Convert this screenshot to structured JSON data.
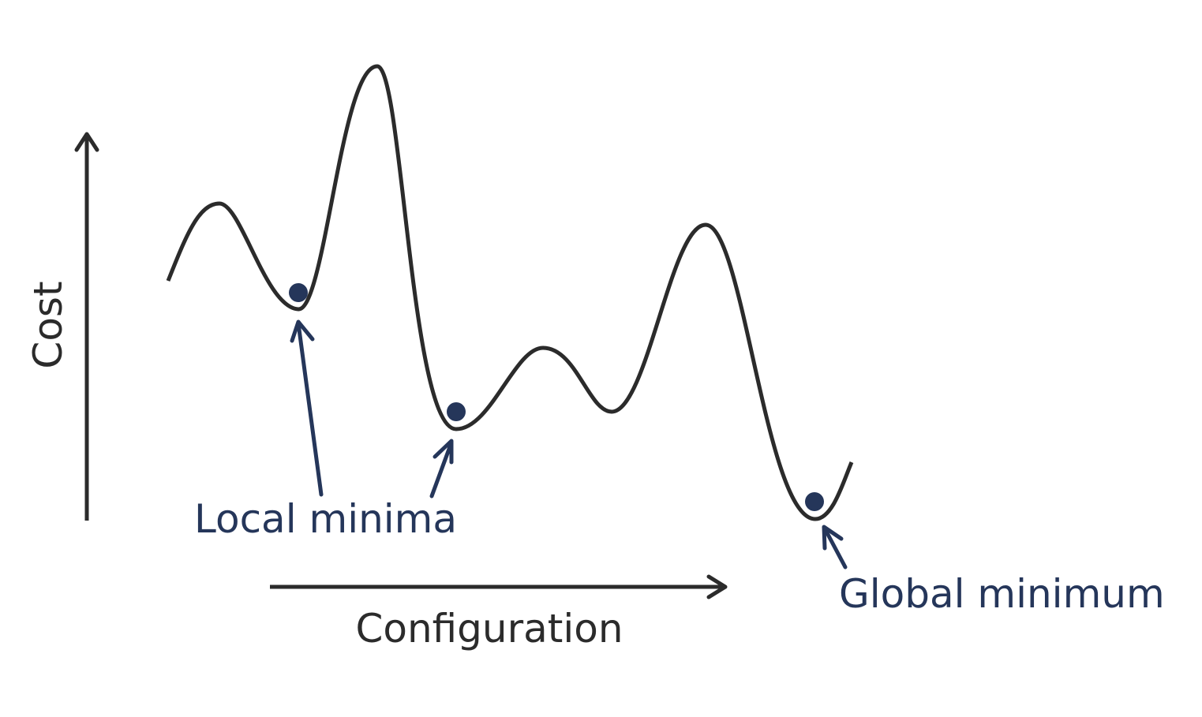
{
  "axes": {
    "y_label": "Cost",
    "x_label": "Configuration"
  },
  "annotations": {
    "local_label": "Local minima",
    "global_label": "Global minimum"
  },
  "colors": {
    "curve": "#2b2b2b",
    "axis": "#2b2b2b",
    "accent": "#25365a",
    "background": "#ffffff"
  },
  "curve": {
    "description_shape": "wavy cost landscape with two local minima and one global minimum",
    "minima": [
      {
        "kind": "local"
      },
      {
        "kind": "local"
      },
      {
        "kind": "global"
      }
    ]
  }
}
